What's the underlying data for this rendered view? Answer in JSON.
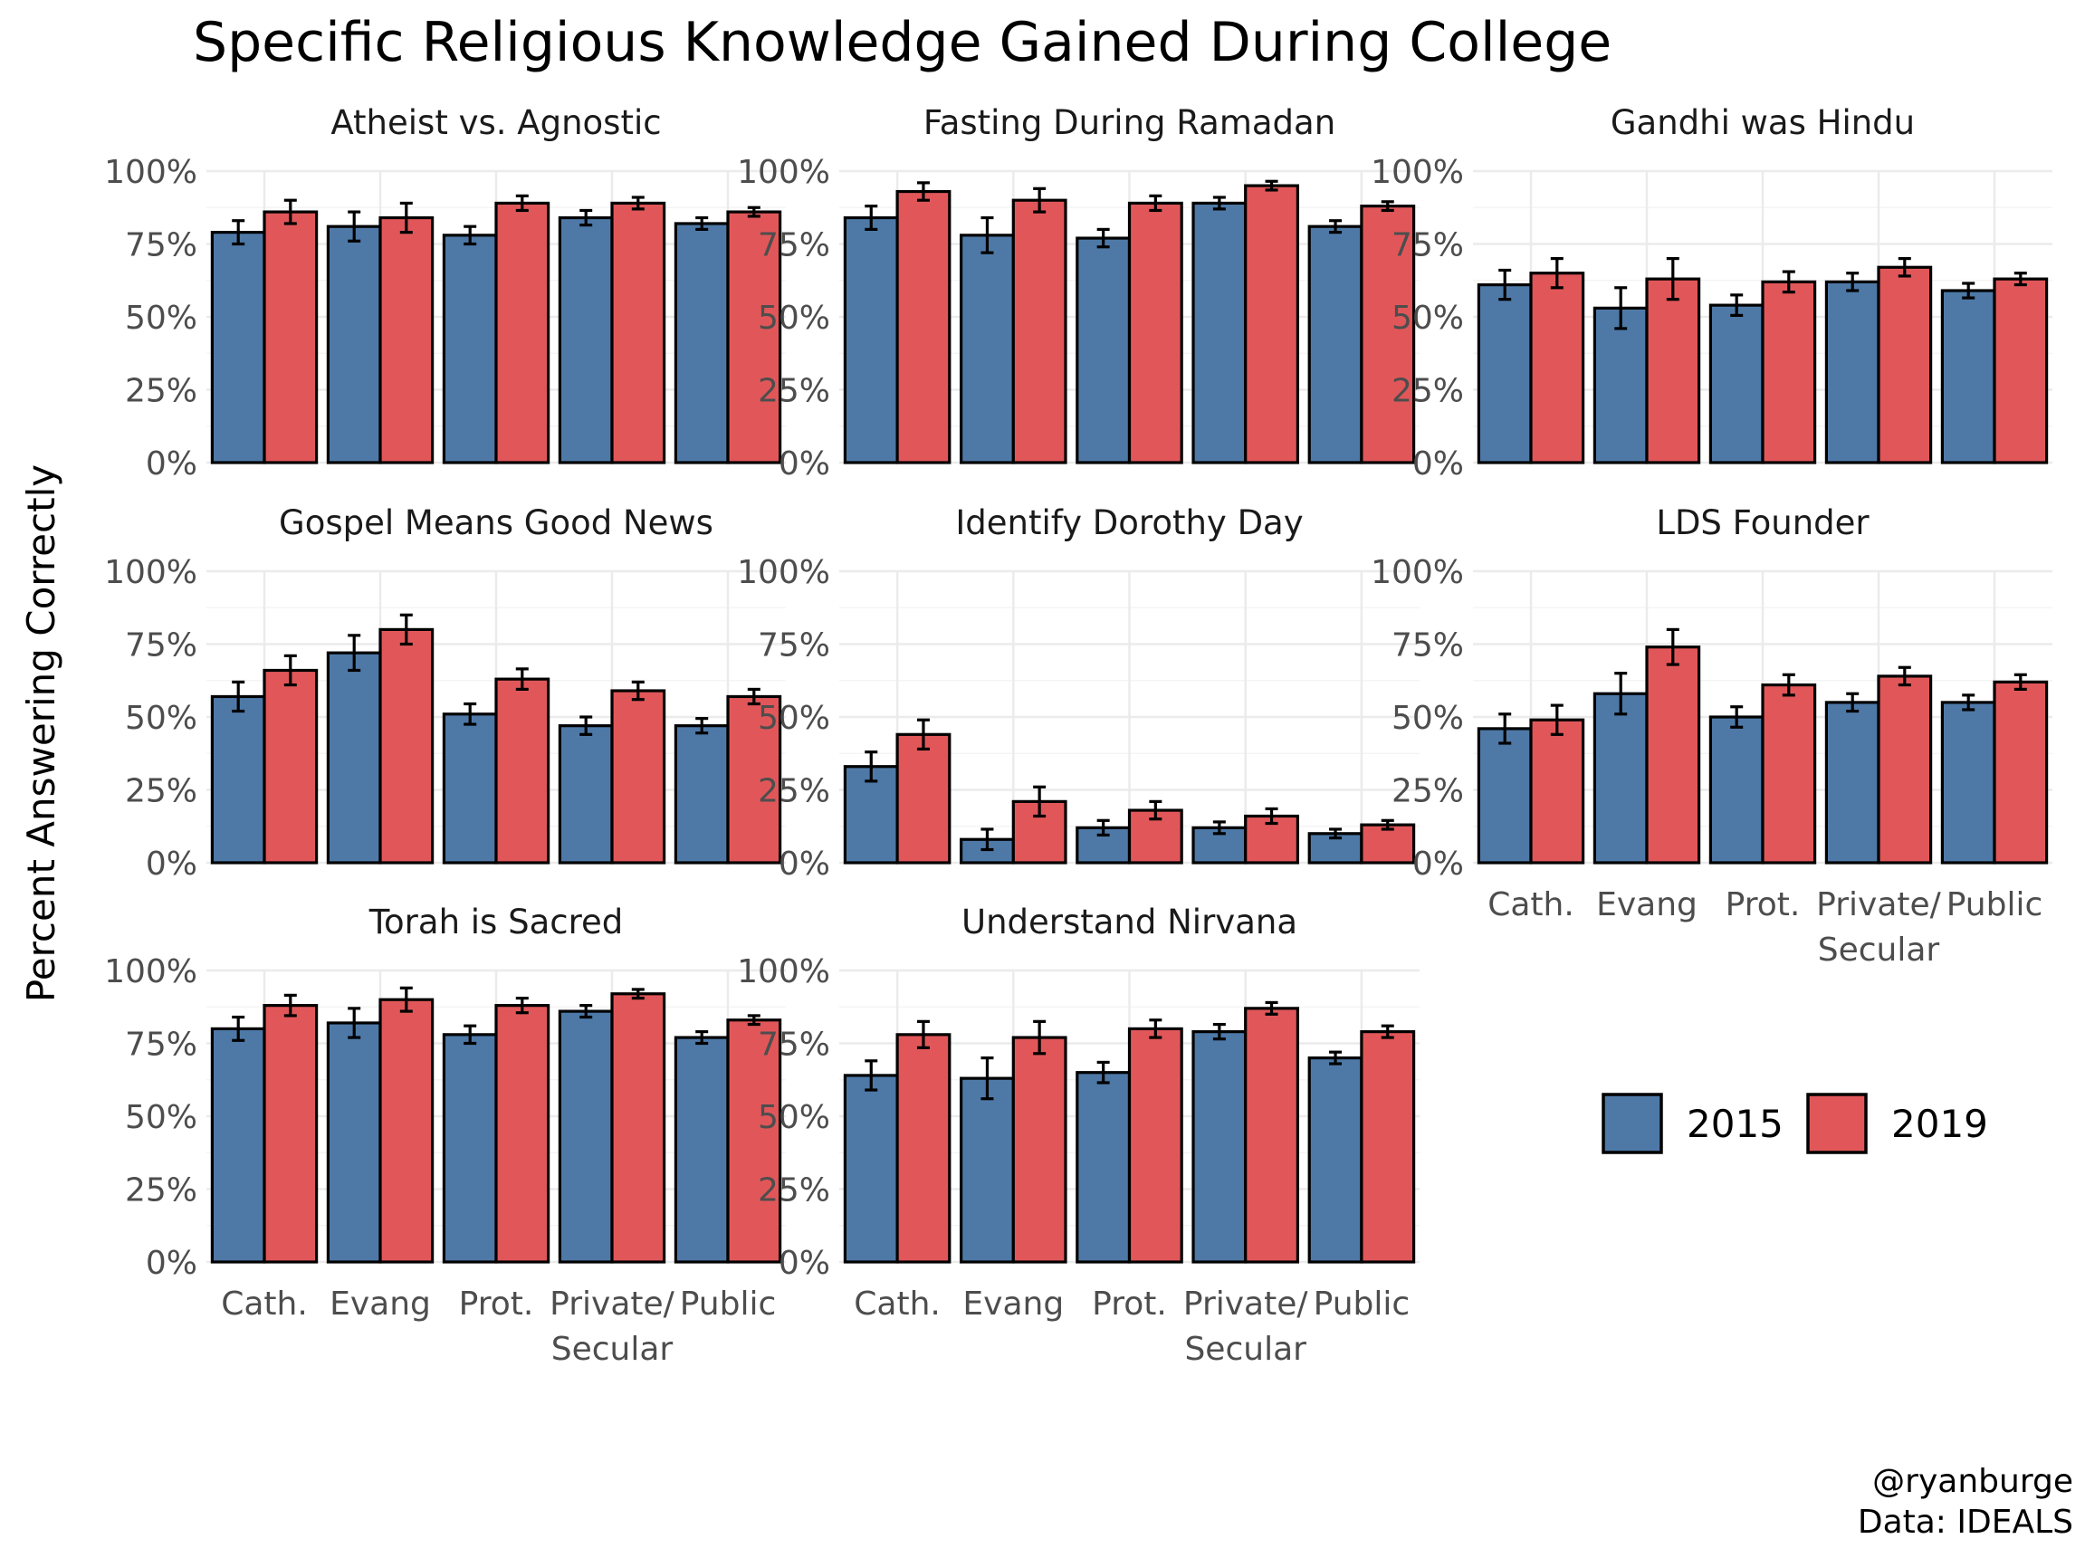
{
  "chart_data": {
    "type": "bar",
    "title": "Specific Religious Knowledge Gained During College",
    "ylabel": "Percent Answering Correctly",
    "xlabel": "",
    "categories": [
      "Cath.",
      "Evang",
      "Prot.",
      "Private/ Secular",
      "Public"
    ],
    "category_lines": [
      [
        "Cath."
      ],
      [
        "Evang"
      ],
      [
        "Prot."
      ],
      [
        "Private/",
        "Secular"
      ],
      [
        "Public"
      ]
    ],
    "y_ticks": [
      "0%",
      "25%",
      "50%",
      "75%",
      "100%"
    ],
    "ylim": [
      0,
      100
    ],
    "legend": {
      "position": "right",
      "entries": [
        {
          "name": "2015",
          "color": "#4e79a7"
        },
        {
          "name": "2019",
          "color": "#e15759"
        }
      ]
    },
    "facets": [
      {
        "title": "Atheist vs. Agnostic",
        "series": [
          {
            "name": "2015",
            "values": [
              79,
              81,
              78,
              84,
              82
            ],
            "error": [
              4,
              5,
              3,
              2.5,
              2
            ]
          },
          {
            "name": "2019",
            "values": [
              86,
              84,
              89,
              89,
              86
            ],
            "error": [
              4,
              5,
              2.5,
              2,
              1.5
            ]
          }
        ]
      },
      {
        "title": "Fasting During Ramadan",
        "series": [
          {
            "name": "2015",
            "values": [
              84,
              78,
              77,
              89,
              81
            ],
            "error": [
              4,
              6,
              3,
              2,
              2
            ]
          },
          {
            "name": "2019",
            "values": [
              93,
              90,
              89,
              95,
              88
            ],
            "error": [
              3,
              4,
              2.5,
              1.5,
              1.5
            ]
          }
        ]
      },
      {
        "title": "Gandhi was Hindu",
        "series": [
          {
            "name": "2015",
            "values": [
              61,
              53,
              54,
              62,
              59
            ],
            "error": [
              5,
              7,
              3.5,
              3,
              2.5
            ]
          },
          {
            "name": "2019",
            "values": [
              65,
              63,
              62,
              67,
              63
            ],
            "error": [
              5,
              7,
              3.5,
              3,
              2
            ]
          }
        ]
      },
      {
        "title": "Gospel Means Good News",
        "series": [
          {
            "name": "2015",
            "values": [
              57,
              72,
              51,
              47,
              47
            ],
            "error": [
              5,
              6,
              3.5,
              3,
              2.5
            ]
          },
          {
            "name": "2019",
            "values": [
              66,
              80,
              63,
              59,
              57
            ],
            "error": [
              5,
              5,
              3.5,
              3,
              2.5
            ]
          }
        ]
      },
      {
        "title": "Identify Dorothy Day",
        "series": [
          {
            "name": "2015",
            "values": [
              33,
              8,
              12,
              12,
              10
            ],
            "error": [
              5,
              3.5,
              2.5,
              2,
              1.5
            ]
          },
          {
            "name": "2019",
            "values": [
              44,
              21,
              18,
              16,
              13
            ],
            "error": [
              5,
              5,
              3,
              2.5,
              1.5
            ]
          }
        ]
      },
      {
        "title": "LDS Founder",
        "series": [
          {
            "name": "2015",
            "values": [
              46,
              58,
              50,
              55,
              55
            ],
            "error": [
              5,
              7,
              3.5,
              3,
              2.5
            ]
          },
          {
            "name": "2019",
            "values": [
              49,
              74,
              61,
              64,
              62
            ],
            "error": [
              5,
              6,
              3.5,
              3,
              2.5
            ]
          }
        ]
      },
      {
        "title": "Torah is Sacred",
        "series": [
          {
            "name": "2015",
            "values": [
              80,
              82,
              78,
              86,
              77
            ],
            "error": [
              4,
              5,
              3,
              2,
              2
            ]
          },
          {
            "name": "2019",
            "values": [
              88,
              90,
              88,
              92,
              83
            ],
            "error": [
              3.5,
              4,
              2.5,
              1.5,
              1.5
            ]
          }
        ]
      },
      {
        "title": "Understand Nirvana",
        "series": [
          {
            "name": "2015",
            "values": [
              64,
              63,
              65,
              79,
              70
            ],
            "error": [
              5,
              7,
              3.5,
              2.5,
              2
            ]
          },
          {
            "name": "2019",
            "values": [
              78,
              77,
              80,
              87,
              79
            ],
            "error": [
              4.5,
              5.5,
              3,
              2,
              2
            ]
          }
        ]
      }
    ],
    "caption_lines": [
      "@ryanburge",
      "Data: IDEALS"
    ]
  }
}
